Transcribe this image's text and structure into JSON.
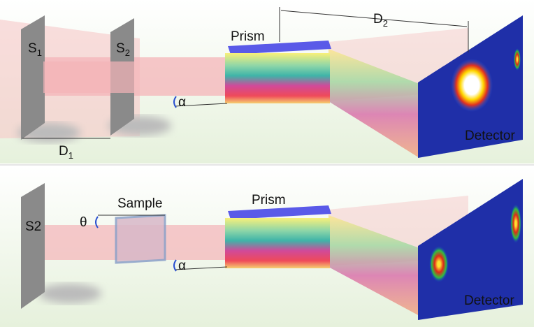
{
  "panels": [
    {
      "slits": [
        {
          "main": "S",
          "sub": "1"
        },
        {
          "main": "S",
          "sub": "2"
        }
      ],
      "prism": "Prism",
      "distance_top": {
        "main": "D",
        "sub": "2"
      },
      "distance_bottom": {
        "main": "D",
        "sub": "1"
      },
      "angle": "α",
      "detector": "Detector"
    },
    {
      "slit": "S2",
      "tilt": "θ",
      "sample": "Sample",
      "prism": "Prism",
      "angle": "α",
      "detector": "Detector"
    }
  ]
}
